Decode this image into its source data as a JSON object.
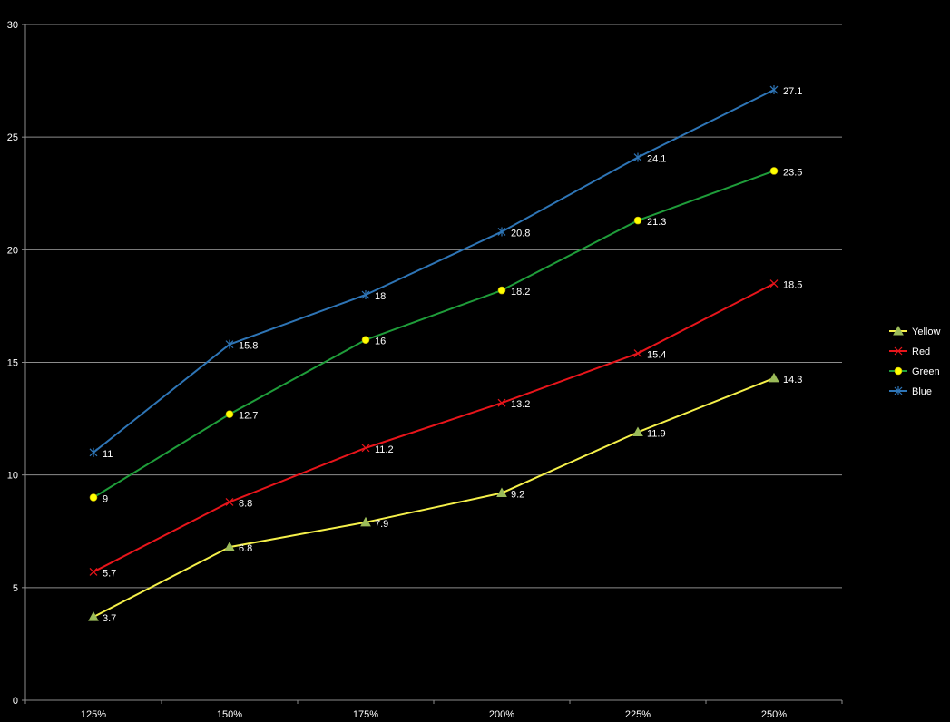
{
  "chart_data": {
    "type": "line",
    "categories": [
      "125%",
      "150%",
      "175%",
      "200%",
      "225%",
      "250%"
    ],
    "ylim": [
      0,
      30
    ],
    "yticks": [
      0,
      5,
      10,
      15,
      20,
      25,
      30
    ],
    "grid": true,
    "legend": "right",
    "series": [
      {
        "name": "Yellow",
        "color": "#f5f04a",
        "marker": "triangle",
        "marker_color": "#9bbb59",
        "values": [
          3.7,
          6.8,
          7.9,
          9.2,
          11.9,
          14.3
        ]
      },
      {
        "name": "Red",
        "color": "#e8151b",
        "marker": "x",
        "marker_color": "#e8151b",
        "values": [
          5.7,
          8.8,
          11.2,
          13.2,
          15.4,
          18.5
        ]
      },
      {
        "name": "Green",
        "color": "#1f9d3a",
        "marker": "circle",
        "marker_color": "#ffff00",
        "values": [
          9,
          12.7,
          16,
          18.2,
          21.3,
          23.5
        ]
      },
      {
        "name": "Blue",
        "color": "#2e75b6",
        "marker": "star",
        "marker_color": "#2e75b6",
        "values": [
          11,
          15.8,
          18,
          20.8,
          24.1,
          27.1
        ]
      }
    ]
  }
}
